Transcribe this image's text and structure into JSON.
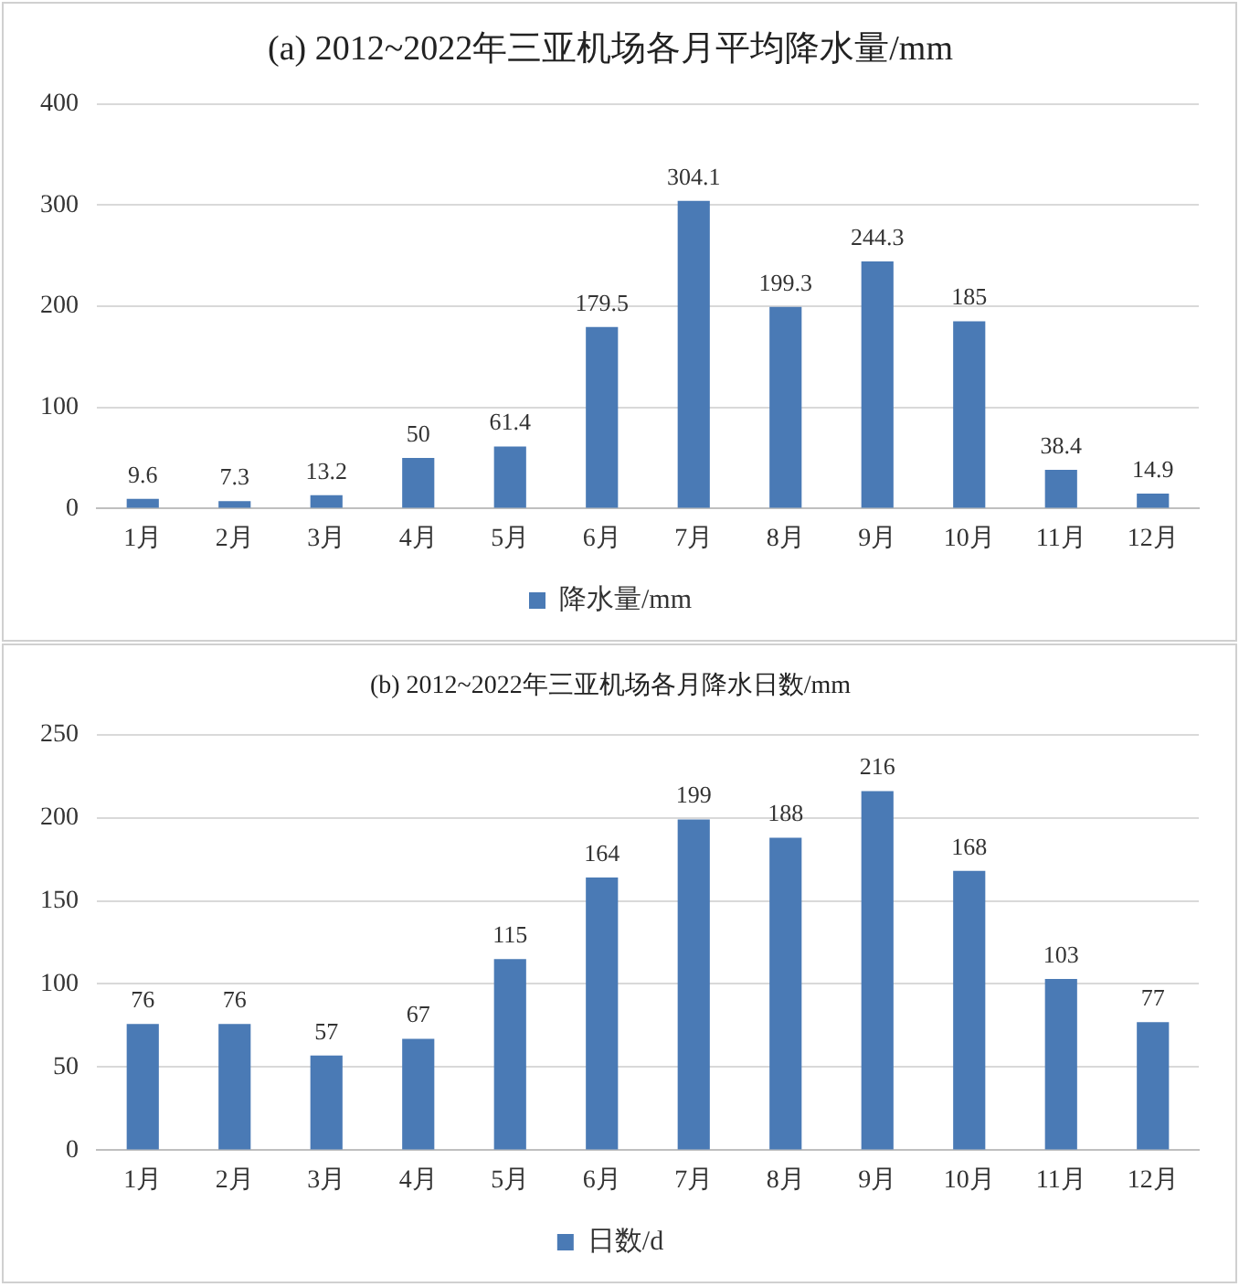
{
  "chart_data": [
    {
      "type": "bar",
      "title": "(a) 2012~2022年三亚机场各月平均降水量/mm",
      "categories": [
        "1月",
        "2月",
        "3月",
        "4月",
        "5月",
        "6月",
        "7月",
        "8月",
        "9月",
        "10月",
        "11月",
        "12月"
      ],
      "series": [
        {
          "name": "降水量/mm",
          "color": "#4a7ab5",
          "values": [
            9.6,
            7.3,
            13.2,
            50,
            61.4,
            179.5,
            304.1,
            199.3,
            244.3,
            185,
            38.4,
            14.9
          ]
        }
      ],
      "ylim": [
        0,
        400
      ],
      "yticks": [
        0,
        100,
        200,
        300,
        400
      ],
      "grid": "y",
      "legend": "bottom",
      "data_labels": true
    },
    {
      "type": "bar",
      "title": "(b) 2012~2022年三亚机场各月降水日数/mm",
      "categories": [
        "1月",
        "2月",
        "3月",
        "4月",
        "5月",
        "6月",
        "7月",
        "8月",
        "9月",
        "10月",
        "11月",
        "12月"
      ],
      "series": [
        {
          "name": "日数/d",
          "color": "#4a7ab5",
          "values": [
            76,
            76,
            57,
            67,
            115,
            164,
            199,
            188,
            216,
            168,
            103,
            77
          ]
        }
      ],
      "ylim": [
        0,
        250
      ],
      "yticks": [
        0,
        50,
        100,
        150,
        200,
        250
      ],
      "grid": "y",
      "legend": "bottom",
      "data_labels": true
    }
  ]
}
